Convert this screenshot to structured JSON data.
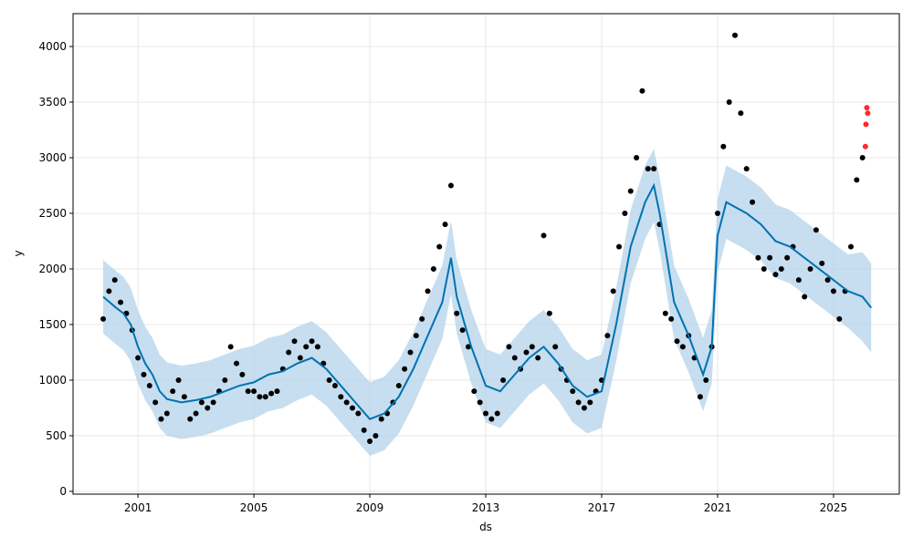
{
  "chart_data": {
    "type": "forecast",
    "x_label": "ds",
    "y_label": "y",
    "xlim": [
      1998.76,
      2027.27
    ],
    "ylim": [
      -25,
      4295
    ],
    "xticks": [
      2001,
      2005,
      2009,
      2013,
      2017,
      2021,
      2025
    ],
    "yticks": [
      0,
      500,
      1000,
      1500,
      2000,
      2500,
      3000,
      3500,
      4000
    ],
    "grid": true,
    "observed": {
      "color": "#000000",
      "x": [
        1999.8,
        2000.0,
        2000.2,
        2000.4,
        2000.6,
        2000.8,
        2001.0,
        2001.2,
        2001.4,
        2001.6,
        2001.8,
        2002.0,
        2002.2,
        2002.4,
        2002.6,
        2002.8,
        2003.0,
        2003.2,
        2003.4,
        2003.6,
        2003.8,
        2004.0,
        2004.2,
        2004.4,
        2004.6,
        2004.8,
        2005.0,
        2005.2,
        2005.4,
        2005.6,
        2005.8,
        2006.0,
        2006.2,
        2006.4,
        2006.6,
        2006.8,
        2007.0,
        2007.2,
        2007.4,
        2007.6,
        2007.8,
        2008.0,
        2008.2,
        2008.4,
        2008.6,
        2008.8,
        2009.0,
        2009.2,
        2009.4,
        2009.6,
        2009.8,
        2010.0,
        2010.2,
        2010.4,
        2010.6,
        2010.8,
        2011.0,
        2011.2,
        2011.4,
        2011.6,
        2011.8,
        2012.0,
        2012.2,
        2012.4,
        2012.6,
        2012.8,
        2013.0,
        2013.2,
        2013.4,
        2013.6,
        2013.8,
        2014.0,
        2014.2,
        2014.4,
        2014.6,
        2014.8,
        2015.0,
        2015.2,
        2015.4,
        2015.6,
        2015.8,
        2016.0,
        2016.2,
        2016.4,
        2016.6,
        2016.8,
        2017.0,
        2017.2,
        2017.4,
        2017.6,
        2017.8,
        2018.0,
        2018.2,
        2018.4,
        2018.6,
        2018.8,
        2019.0,
        2019.2,
        2019.4,
        2019.6,
        2019.8,
        2020.0,
        2020.2,
        2020.4,
        2020.6,
        2020.8,
        2021.0,
        2021.2,
        2021.4,
        2021.6,
        2021.8,
        2022.0,
        2022.2,
        2022.4,
        2022.6,
        2022.8,
        2023.0,
        2023.2,
        2023.4,
        2023.6,
        2023.8,
        2024.0,
        2024.2,
        2024.4,
        2024.6,
        2024.8,
        2025.0,
        2025.2,
        2025.4,
        2025.6,
        2025.8,
        2026.0
      ],
      "values": [
        1550,
        1800,
        1900,
        1700,
        1600,
        1450,
        1200,
        1050,
        950,
        800,
        650,
        700,
        900,
        1000,
        850,
        650,
        700,
        800,
        750,
        800,
        900,
        1000,
        1300,
        1150,
        1050,
        900,
        900,
        850,
        850,
        880,
        900,
        1100,
        1250,
        1350,
        1200,
        1300,
        1350,
        1300,
        1150,
        1000,
        950,
        850,
        800,
        750,
        700,
        550,
        450,
        500,
        650,
        700,
        800,
        950,
        1100,
        1250,
        1400,
        1550,
        1800,
        2000,
        2200,
        2400,
        2750,
        1600,
        1450,
        1300,
        900,
        800,
        700,
        650,
        700,
        1000,
        1300,
        1200,
        1100,
        1250,
        1300,
        1200,
        2300,
        1600,
        1300,
        1100,
        1000,
        900,
        800,
        750,
        800,
        900,
        1000,
        1400,
        1800,
        2200,
        2500,
        2700,
        3000,
        3600,
        2900,
        2900,
        2400,
        1600,
        1550,
        1350,
        1300,
        1400,
        1200,
        850,
        1000,
        1300,
        2500,
        3100,
        3500,
        4100,
        3400,
        2900,
        2600,
        2100,
        2000,
        2100,
        1950,
        2000,
        2100,
        2200,
        1900,
        1750,
        2000,
        2350,
        2050,
        1900,
        1800,
        1550,
        1800,
        2200,
        2800,
        3000
      ]
    },
    "anomalies": {
      "color": "#ff2a2a",
      "x": [
        2026.1,
        2026.12,
        2026.15,
        2026.18
      ],
      "values": [
        3100,
        3300,
        3450,
        3400
      ]
    },
    "forecast": {
      "color": "#0072b2",
      "band_color": "#b3d3ea",
      "x": [
        1999.8,
        2000.25,
        2000.5,
        2000.75,
        2001,
        2001.25,
        2001.5,
        2001.75,
        2002,
        2002.5,
        2003,
        2003.5,
        2004,
        2004.5,
        2005,
        2005.5,
        2006,
        2006.5,
        2007,
        2007.5,
        2008,
        2008.5,
        2009,
        2009.5,
        2010,
        2010.5,
        2011,
        2011.5,
        2011.8,
        2012,
        2012.5,
        2013,
        2013.5,
        2014,
        2014.5,
        2015,
        2015.5,
        2016,
        2016.5,
        2017,
        2017.5,
        2018,
        2018.5,
        2018.8,
        2019,
        2019.5,
        2020,
        2020.5,
        2020.8,
        2021,
        2021.3,
        2022,
        2022.5,
        2023,
        2023.5,
        2024,
        2024.5,
        2025,
        2025.5,
        2026,
        2026.3
      ],
      "values": [
        1750,
        1650,
        1600,
        1500,
        1300,
        1150,
        1050,
        900,
        830,
        800,
        820,
        850,
        900,
        950,
        980,
        1050,
        1080,
        1150,
        1200,
        1100,
        950,
        800,
        650,
        700,
        850,
        1100,
        1400,
        1700,
        2100,
        1750,
        1300,
        950,
        900,
        1050,
        1200,
        1300,
        1150,
        950,
        850,
        900,
        1500,
        2200,
        2600,
        2750,
        2500,
        1700,
        1400,
        1050,
        1300,
        2300,
        2600,
        2500,
        2400,
        2250,
        2200,
        2100,
        2000,
        1900,
        1800,
        1750,
        1650
      ],
      "lower": [
        1420,
        1320,
        1270,
        1170,
        970,
        820,
        720,
        570,
        500,
        470,
        490,
        520,
        570,
        620,
        650,
        720,
        750,
        820,
        870,
        770,
        620,
        470,
        320,
        370,
        520,
        770,
        1070,
        1370,
        1770,
        1420,
        970,
        620,
        570,
        720,
        870,
        970,
        820,
        620,
        520,
        570,
        1170,
        1870,
        2270,
        2420,
        2170,
        1370,
        1070,
        720,
        970,
        1970,
        2270,
        2170,
        2070,
        1920,
        1870,
        1770,
        1670,
        1570,
        1470,
        1350,
        1250
      ],
      "upper": [
        2080,
        1980,
        1930,
        1830,
        1630,
        1480,
        1380,
        1230,
        1160,
        1130,
        1150,
        1180,
        1230,
        1280,
        1310,
        1380,
        1410,
        1480,
        1530,
        1430,
        1280,
        1130,
        980,
        1030,
        1180,
        1430,
        1730,
        2030,
        2430,
        2080,
        1630,
        1280,
        1230,
        1380,
        1530,
        1630,
        1480,
        1280,
        1180,
        1230,
        1830,
        2530,
        2930,
        3080,
        2830,
        2030,
        1730,
        1380,
        1630,
        2630,
        2930,
        2830,
        2730,
        2580,
        2530,
        2430,
        2330,
        2230,
        2130,
        2150,
        2050
      ]
    }
  }
}
